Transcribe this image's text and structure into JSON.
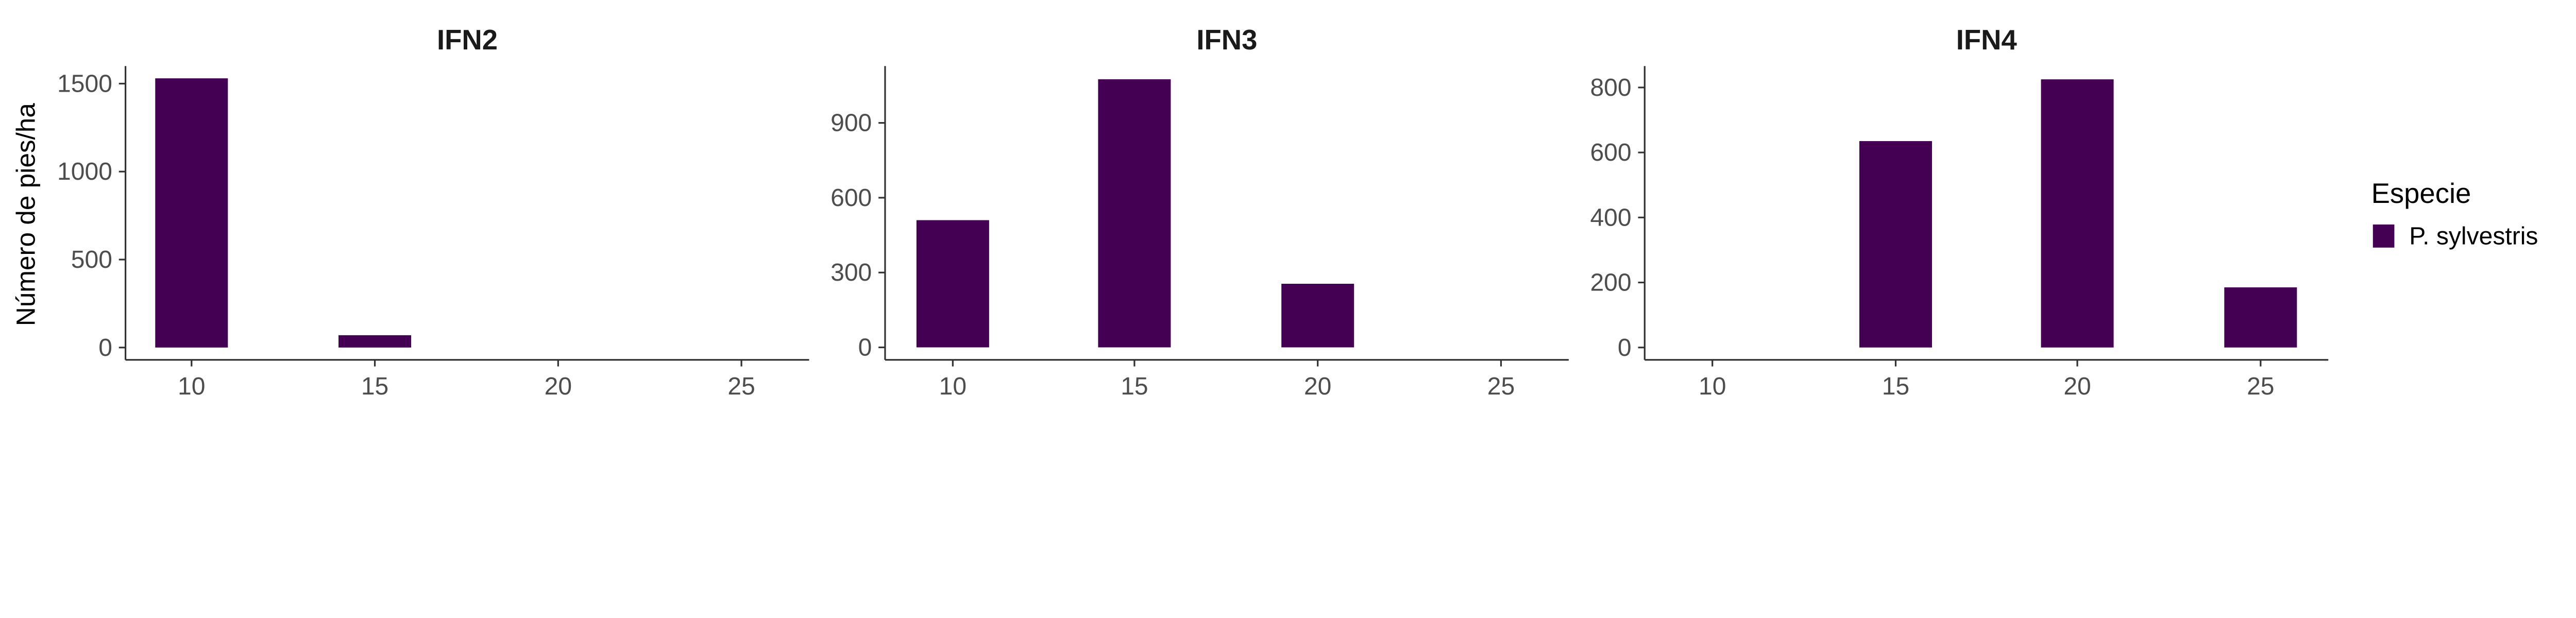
{
  "chart_data": [
    {
      "type": "bar",
      "title": "IFN2",
      "ylabel": "Número de pies/ha",
      "categories": [
        "10",
        "15",
        "20",
        "25"
      ],
      "series": [
        {
          "name": "P. sylvestris",
          "values": [
            1530,
            70,
            0,
            0
          ]
        }
      ],
      "yticks": [
        0,
        500,
        1000,
        1500
      ],
      "ylim": [
        -70,
        1600
      ]
    },
    {
      "type": "bar",
      "title": "IFN3",
      "categories": [
        "10",
        "15",
        "20",
        "25"
      ],
      "series": [
        {
          "name": "P. sylvestris",
          "values": [
            510,
            1075,
            255,
            0
          ]
        }
      ],
      "yticks": [
        0,
        300,
        600,
        900
      ],
      "ylim": [
        -50,
        1128
      ]
    },
    {
      "type": "bar",
      "title": "IFN4",
      "categories": [
        "10",
        "15",
        "20",
        "25"
      ],
      "series": [
        {
          "name": "P. sylvestris",
          "values": [
            0,
            635,
            825,
            185
          ]
        }
      ],
      "yticks": [
        0,
        200,
        400,
        600,
        800
      ],
      "ylim": [
        -38,
        866
      ]
    }
  ],
  "legend": {
    "title": "Especie",
    "items": [
      {
        "label": "P. sylvestris",
        "color": "#440154"
      }
    ],
    "placement": "right"
  },
  "colors": {
    "bar": "#440154",
    "axis": "#333333",
    "tick_text": "#4d4d4d"
  },
  "grid": false
}
